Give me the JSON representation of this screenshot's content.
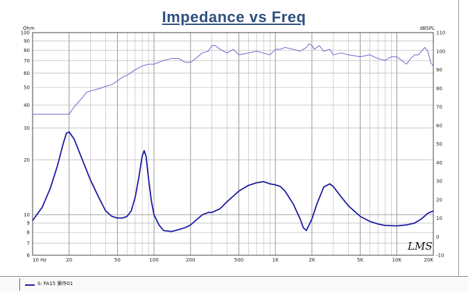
{
  "chart_data": {
    "type": "line",
    "title": "Impedance vs Freq",
    "x_scale": "log",
    "xlim": [
      10,
      20000
    ],
    "x_tick_labels": [
      "10 Hz",
      "20",
      "50",
      "100",
      "200",
      "500",
      "1K",
      "2K",
      "5K",
      "10K",
      "20K"
    ],
    "x_tick_values": [
      10,
      20,
      50,
      100,
      200,
      500,
      1000,
      2000,
      5000,
      10000,
      20000
    ],
    "left_axis": {
      "unit": "Ohm",
      "scale": "log",
      "range": [
        6,
        100
      ],
      "tick_values": [
        6,
        7,
        8,
        9,
        10,
        20,
        30,
        40,
        50,
        60,
        70,
        80,
        90,
        100
      ],
      "tick_labels": [
        "6",
        "7",
        "8",
        "9",
        "10",
        "20",
        "30",
        "40",
        "50",
        "60",
        "70",
        "80",
        "90",
        "100"
      ]
    },
    "right_axis": {
      "unit": "dBSPL",
      "scale": "linear",
      "range": [
        -10,
        110
      ],
      "tick_values": [
        -10,
        0,
        10,
        20,
        30,
        40,
        50,
        60,
        70,
        80,
        90,
        100,
        110
      ],
      "tick_labels": [
        "-10",
        "0",
        "10",
        "20",
        "30",
        "40",
        "50",
        "60",
        "70",
        "80",
        "90",
        "100",
        "110"
      ]
    },
    "grid": true,
    "series": [
      {
        "name": "S: FA15 第作01",
        "axis": "left",
        "color": "#1a1aa0",
        "x": [
          10,
          12,
          14,
          16,
          18,
          19,
          20,
          22,
          25,
          30,
          35,
          40,
          45,
          50,
          55,
          60,
          65,
          70,
          75,
          80,
          83,
          86,
          90,
          95,
          100,
          110,
          120,
          140,
          160,
          180,
          200,
          220,
          250,
          280,
          300,
          350,
          400,
          500,
          600,
          700,
          800,
          900,
          1000,
          1100,
          1200,
          1400,
          1600,
          1700,
          1800,
          2000,
          2200,
          2500,
          2800,
          3000,
          3500,
          4000,
          5000,
          6000,
          7000,
          8000,
          10000,
          12000,
          14000,
          16000,
          18000,
          20000
        ],
        "y": [
          9.3,
          11,
          14,
          18.5,
          25,
          28,
          28.5,
          26,
          21,
          15.5,
          12.5,
          10.5,
          9.8,
          9.6,
          9.6,
          9.8,
          10.5,
          12.5,
          16,
          21,
          22.5,
          21,
          16,
          12,
          10,
          8.8,
          8.2,
          8.1,
          8.3,
          8.5,
          8.8,
          9.3,
          10,
          10.3,
          10.3,
          10.8,
          11.8,
          13.5,
          14.5,
          15,
          15.2,
          14.8,
          14.6,
          14.3,
          13.5,
          11.5,
          9.5,
          8.5,
          8.2,
          9.5,
          11.5,
          14.2,
          14.8,
          14.3,
          12.5,
          11.2,
          9.8,
          9.2,
          8.9,
          8.75,
          8.7,
          8.8,
          9,
          9.5,
          10.2,
          10.5
        ]
      },
      {
        "name": "",
        "axis": "right",
        "color": "#7a6fd0",
        "x": [
          10,
          20,
          22,
          25,
          28,
          32,
          36,
          40,
          45,
          50,
          55,
          60,
          70,
          80,
          90,
          100,
          110,
          120,
          140,
          160,
          180,
          200,
          220,
          250,
          280,
          300,
          320,
          350,
          400,
          450,
          500,
          600,
          700,
          800,
          900,
          1000,
          1100,
          1200,
          1400,
          1600,
          1800,
          1900,
          2000,
          2100,
          2300,
          2500,
          2800,
          3000,
          3500,
          4000,
          5000,
          6000,
          7000,
          8000,
          9000,
          10000,
          11000,
          12000,
          13000,
          14000,
          15000,
          16000,
          17000,
          18000,
          19000,
          20000
        ],
        "y": [
          66,
          66,
          70,
          74,
          78,
          79,
          80,
          81,
          82,
          84,
          86,
          87,
          90,
          92,
          93,
          93,
          94,
          95,
          96,
          96,
          94,
          94,
          96,
          99,
          100,
          103,
          103,
          101,
          99,
          101,
          98,
          99,
          100,
          99,
          98,
          101,
          101,
          102,
          101,
          100,
          102,
          104,
          103,
          101,
          103,
          100,
          101,
          98,
          99,
          98,
          97,
          98,
          96,
          95,
          97,
          97,
          95,
          93,
          96,
          98,
          98,
          100,
          102,
          100,
          94,
          92
        ]
      }
    ]
  },
  "legend": {
    "label": "S: FA15 第作01"
  },
  "watermark": "LMS"
}
